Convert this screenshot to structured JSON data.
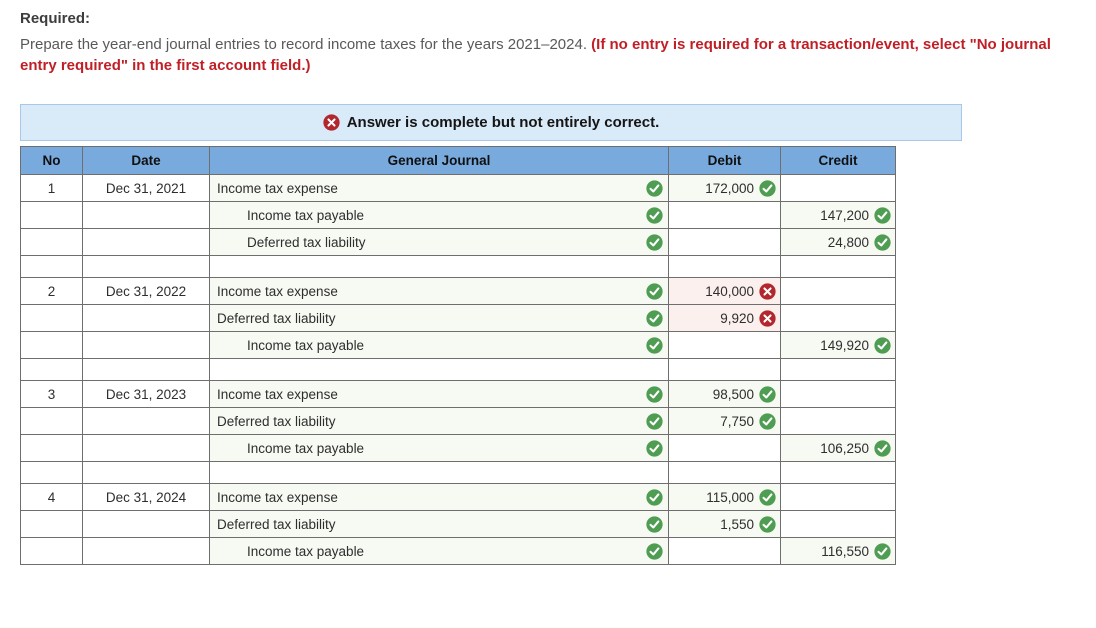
{
  "page": {
    "required_label": "Required:",
    "instructions_normal": "Prepare the year-end journal entries to record income taxes for the years 2021–2024. ",
    "instructions_bold_red": "(If no entry is required for a transaction/event, select \"No journal entry required\" in the first account field.)"
  },
  "banner": {
    "icon": "incorrect-x-circle-icon",
    "text": "Answer is complete but not entirely correct."
  },
  "table": {
    "headers": {
      "no": "No",
      "date": "Date",
      "journal": "General Journal",
      "debit": "Debit",
      "credit": "Credit"
    },
    "entries": [
      {
        "no": "1",
        "date": "Dec 31, 2021",
        "rows": [
          {
            "account": "Income tax expense",
            "indent": false,
            "account_status": "correct",
            "debit": "172,000",
            "debit_status": "correct",
            "credit": "",
            "credit_status": null
          },
          {
            "account": "Income tax payable",
            "indent": true,
            "account_status": "correct",
            "debit": "",
            "debit_status": null,
            "credit": "147,200",
            "credit_status": "correct"
          },
          {
            "account": "Deferred tax liability",
            "indent": true,
            "account_status": "correct",
            "debit": "",
            "debit_status": null,
            "credit": "24,800",
            "credit_status": "correct"
          }
        ]
      },
      {
        "no": "2",
        "date": "Dec 31, 2022",
        "rows": [
          {
            "account": "Income tax expense",
            "indent": false,
            "account_status": "correct",
            "debit": "140,000",
            "debit_status": "incorrect",
            "credit": "",
            "credit_status": null
          },
          {
            "account": "Deferred tax liability",
            "indent": false,
            "account_status": "correct",
            "debit": "9,920",
            "debit_status": "incorrect",
            "credit": "",
            "credit_status": null
          },
          {
            "account": "Income tax payable",
            "indent": true,
            "account_status": "correct",
            "debit": "",
            "debit_status": null,
            "credit": "149,920",
            "credit_status": "correct"
          }
        ]
      },
      {
        "no": "3",
        "date": "Dec 31, 2023",
        "rows": [
          {
            "account": "Income tax expense",
            "indent": false,
            "account_status": "correct",
            "debit": "98,500",
            "debit_status": "correct",
            "credit": "",
            "credit_status": null
          },
          {
            "account": "Deferred tax liability",
            "indent": false,
            "account_status": "correct",
            "debit": "7,750",
            "debit_status": "correct",
            "credit": "",
            "credit_status": null
          },
          {
            "account": "Income tax payable",
            "indent": true,
            "account_status": "correct",
            "debit": "",
            "debit_status": null,
            "credit": "106,250",
            "credit_status": "correct"
          }
        ]
      },
      {
        "no": "4",
        "date": "Dec 31, 2024",
        "rows": [
          {
            "account": "Income tax expense",
            "indent": false,
            "account_status": "correct",
            "debit": "115,000",
            "debit_status": "correct",
            "credit": "",
            "credit_status": null
          },
          {
            "account": "Deferred tax liability",
            "indent": false,
            "account_status": "correct",
            "debit": "1,550",
            "debit_status": "correct",
            "credit": "",
            "credit_status": null
          },
          {
            "account": "Income tax payable",
            "indent": true,
            "account_status": "correct",
            "debit": "",
            "debit_status": null,
            "credit": "116,550",
            "credit_status": "correct"
          }
        ]
      }
    ]
  },
  "colors": {
    "header_blue": "#79aade",
    "banner_blue": "#d9eaf8",
    "banner_border": "#a9c8e9",
    "correct_green": "#4f9c53",
    "incorrect_red": "#b2272d",
    "field_bg": "#f7f9f3",
    "error_bg": "#fcf0ee",
    "warning_red_text": "#c01f26"
  }
}
